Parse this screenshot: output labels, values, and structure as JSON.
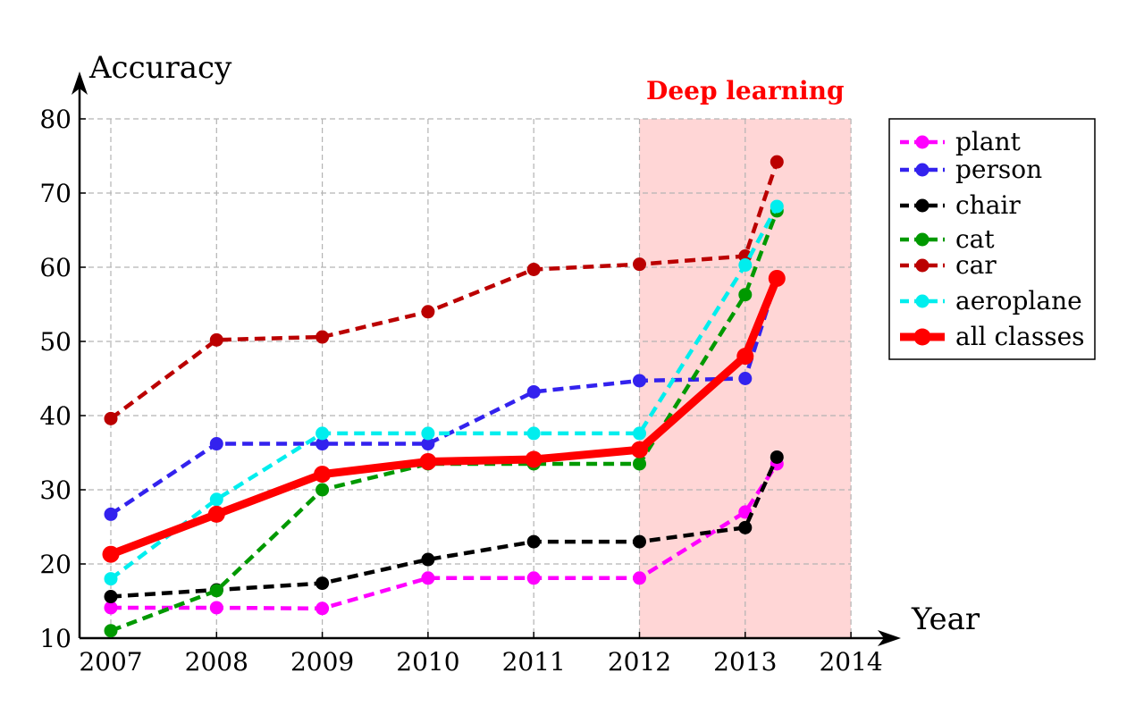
{
  "chart_data": {
    "type": "line",
    "title": "",
    "xlabel": "Year",
    "ylabel": "Accuracy",
    "xlim": [
      2007,
      2014
    ],
    "ylim": [
      10,
      80
    ],
    "x_ticks": [
      2007,
      2008,
      2009,
      2010,
      2011,
      2012,
      2013,
      2014
    ],
    "y_ticks": [
      10,
      20,
      30,
      40,
      50,
      60,
      70,
      80
    ],
    "grid": true,
    "legend_position": "right",
    "highlight_region": {
      "x_start": 2012,
      "x_end": 2014,
      "label": "Deep learning",
      "color": "#ffd6d6",
      "label_color": "#ff0000"
    },
    "series": [
      {
        "name": "plant",
        "color": "#ff00ff",
        "style": "dashed",
        "x": [
          2007,
          2008,
          2009,
          2010,
          2011,
          2012,
          2013,
          2013.3
        ],
        "y": [
          14.1,
          14.1,
          14.0,
          18.1,
          18.1,
          18.1,
          27.0,
          33.5
        ]
      },
      {
        "name": "person",
        "color": "#3322ee",
        "style": "dashed",
        "x": [
          2007,
          2008,
          2009,
          2010,
          2011,
          2012,
          2013,
          2013.3
        ],
        "y": [
          26.7,
          36.2,
          36.2,
          36.2,
          43.2,
          44.7,
          45.0,
          58.5
        ]
      },
      {
        "name": "chair",
        "color": "#000000",
        "style": "dashed",
        "x": [
          2007,
          2008,
          2009,
          2010,
          2011,
          2012,
          2013,
          2013.3
        ],
        "y": [
          15.6,
          16.5,
          17.4,
          20.6,
          23.0,
          23.0,
          24.9,
          34.4
        ]
      },
      {
        "name": "cat",
        "color": "#009900",
        "style": "dashed",
        "x": [
          2007,
          2008,
          2009,
          2010,
          2011,
          2012,
          2013,
          2013.3
        ],
        "y": [
          11.0,
          16.4,
          30.0,
          33.5,
          33.5,
          33.5,
          56.3,
          67.6
        ]
      },
      {
        "name": "car",
        "color": "#bb0000",
        "style": "dashed",
        "x": [
          2007,
          2008,
          2009,
          2010,
          2011,
          2012,
          2013,
          2013.3
        ],
        "y": [
          39.6,
          50.2,
          50.6,
          54.0,
          59.7,
          60.4,
          61.5,
          74.2
        ]
      },
      {
        "name": "aeroplane",
        "color": "#00eeee",
        "style": "dashed",
        "x": [
          2007,
          2008,
          2009,
          2010,
          2011,
          2012,
          2013,
          2013.3
        ],
        "y": [
          18.0,
          28.7,
          37.6,
          37.6,
          37.6,
          37.6,
          60.3,
          68.2
        ]
      },
      {
        "name": "all classes",
        "color": "#ff0000",
        "style": "solid",
        "x": [
          2007,
          2008,
          2009,
          2010,
          2011,
          2012,
          2013,
          2013.3
        ],
        "y": [
          21.3,
          26.7,
          32.1,
          33.8,
          34.1,
          35.4,
          48.0,
          58.5
        ]
      }
    ]
  }
}
